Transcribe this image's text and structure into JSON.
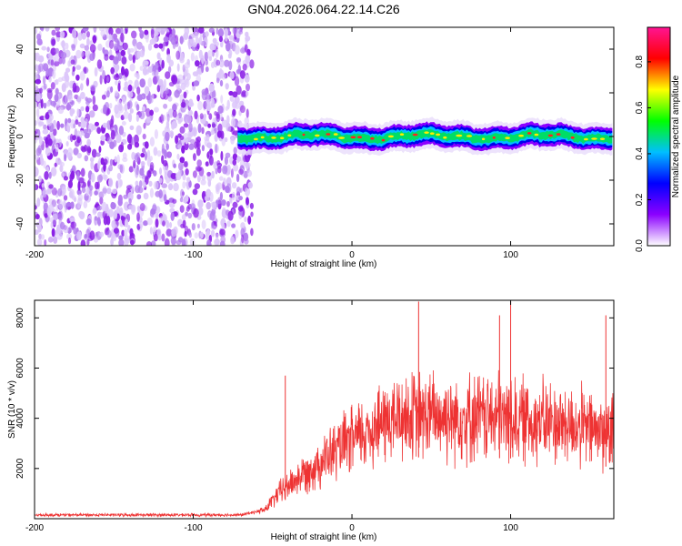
{
  "title": "GN04.2026.064.22.14.C26",
  "chart_data": [
    {
      "type": "heatmap",
      "name": "spectrogram",
      "xlabel": "Height of straight line (km)",
      "ylabel": "Frequency (Hz)",
      "xlim": [
        -200,
        165
      ],
      "ylim": [
        -50,
        50
      ],
      "xticks": [
        -200,
        -100,
        0,
        100
      ],
      "yticks": [
        -40,
        -20,
        0,
        20,
        40
      ],
      "noise_region_x": [
        -200,
        -63
      ],
      "signal_region_x": [
        -72,
        165
      ],
      "signal_center_freq_hz": 0,
      "colorbar": {
        "label": "Normalized spectral amplitude",
        "range": [
          0.0,
          0.95
        ],
        "ticks": [
          0.0,
          0.2,
          0.4,
          0.6,
          0.8
        ],
        "colors": [
          "#ffffff",
          "#8b00ff",
          "#0000ff",
          "#00bfff",
          "#00ff00",
          "#ffff00",
          "#ff0000",
          "#ff1493"
        ]
      }
    },
    {
      "type": "line",
      "name": "snr",
      "xlabel": "Height of straight line (km)",
      "ylabel": "SNR (10 * v/v)",
      "xlim": [
        -200,
        165
      ],
      "ylim": [
        0,
        8700
      ],
      "xticks": [
        -200,
        -100,
        0,
        100
      ],
      "yticks": [
        2000,
        4000,
        6000,
        8000
      ],
      "color": "#ee3333",
      "profile": [
        {
          "x": -200,
          "y": 150
        },
        {
          "x": -70,
          "y": 150
        },
        {
          "x": -55,
          "y": 350
        },
        {
          "x": -45,
          "y": 1100
        },
        {
          "x": -30,
          "y": 1800
        },
        {
          "x": -10,
          "y": 2700
        },
        {
          "x": 0,
          "y": 3100
        },
        {
          "x": 15,
          "y": 3700
        },
        {
          "x": 30,
          "y": 4050
        },
        {
          "x": 60,
          "y": 4100
        },
        {
          "x": 100,
          "y": 4000
        },
        {
          "x": 130,
          "y": 3800
        },
        {
          "x": 165,
          "y": 3400
        }
      ],
      "spikes": [
        {
          "x": -42,
          "y": 5700
        },
        {
          "x": 42,
          "y": 8650
        },
        {
          "x": 93,
          "y": 8100
        },
        {
          "x": 100,
          "y": 8650
        },
        {
          "x": 160,
          "y": 8100
        }
      ]
    }
  ]
}
